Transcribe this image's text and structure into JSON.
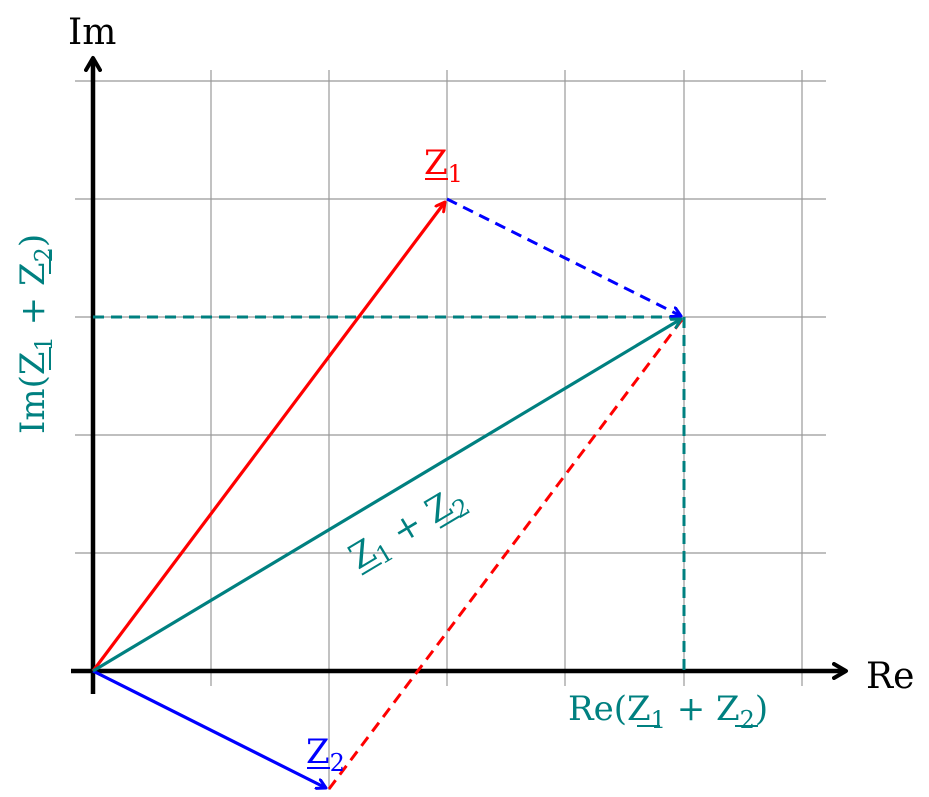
{
  "colors": {
    "z1": "#ff0000",
    "z2": "#0000ff",
    "sum": "#008080",
    "grid": "#999999",
    "axis": "#000000"
  },
  "axes": {
    "x_label": "Re",
    "y_label": "Im"
  },
  "grid": {
    "x_range": [
      0,
      6
    ],
    "y_range": [
      -1,
      5
    ],
    "step": 1
  },
  "vectors": {
    "z1": {
      "name": "Z",
      "subscript": "1",
      "from": [
        0,
        0
      ],
      "to": [
        3,
        4
      ]
    },
    "z2": {
      "name": "Z",
      "subscript": "2",
      "from": [
        0,
        0
      ],
      "to": [
        2,
        -1
      ]
    },
    "sum": {
      "from": [
        0,
        0
      ],
      "to": [
        5,
        3
      ]
    }
  },
  "sum_label": {
    "z": "Z",
    "sub1": "1",
    "plus": " + ",
    "sub2": "2"
  },
  "re_projection_label": {
    "prefix": "Re(",
    "z": "Z",
    "sub1": "1",
    "plus": " + ",
    "sub2": "2",
    "suffix": ")"
  },
  "im_projection_label": {
    "prefix": "Im(",
    "z": "Z",
    "sub1": "1",
    "plus": " + ",
    "sub2": "2",
    "suffix": ")"
  }
}
